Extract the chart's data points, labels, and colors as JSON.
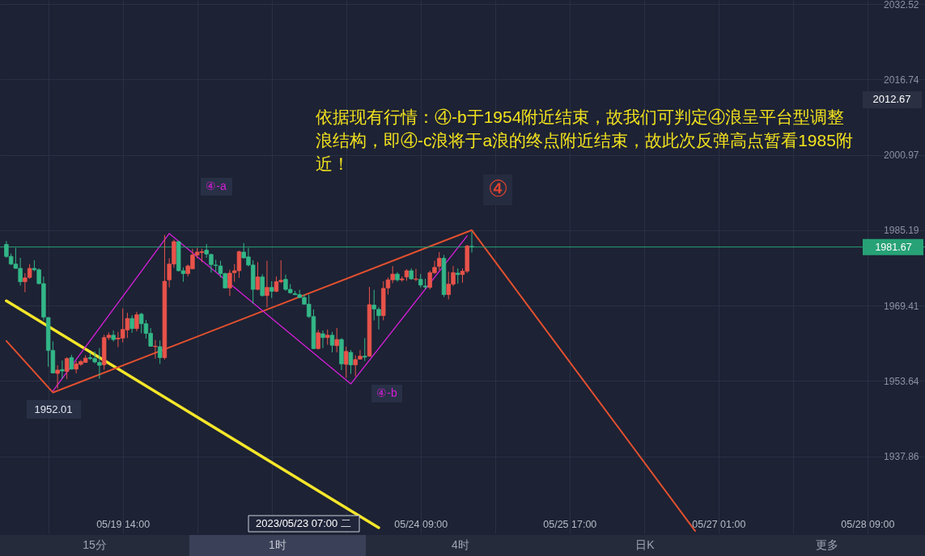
{
  "chart_data": {
    "type": "candlestick",
    "categories": [
      null,
      null,
      null,
      null,
      null,
      null,
      null,
      null,
      null,
      null,
      null,
      null,
      null,
      null,
      null,
      null,
      null,
      null,
      null,
      null,
      null,
      null,
      null,
      null,
      null,
      "05/19 14:00",
      null,
      null,
      null,
      null,
      null,
      null,
      null,
      null,
      null,
      null,
      null,
      null,
      null,
      null,
      null,
      null,
      null,
      null,
      null,
      null,
      null,
      null,
      null,
      null,
      null,
      null,
      null,
      null,
      null,
      null,
      null,
      null,
      null,
      null,
      null,
      null,
      null,
      null,
      null,
      null,
      null,
      null,
      null,
      null,
      null,
      null,
      null,
      null,
      null,
      null,
      null,
      null,
      null,
      null,
      null,
      null,
      null,
      null,
      null,
      null,
      null,
      null,
      null,
      "05/24 09:00",
      null,
      null,
      null,
      null,
      null,
      null,
      null,
      null,
      null,
      null,
      null,
      null,
      null,
      null,
      null,
      null,
      null,
      null,
      null,
      null,
      null,
      null,
      null,
      null,
      null,
      null,
      null,
      null,
      null,
      null,
      null,
      "05/25 17:00",
      null,
      null,
      null,
      null,
      null,
      null,
      null,
      null,
      null,
      null,
      null,
      null,
      null,
      null,
      null,
      null,
      null,
      null,
      null,
      null,
      null,
      null,
      null,
      null,
      null,
      null,
      null,
      null,
      null,
      null,
      null,
      "05/27 01:00",
      null,
      null,
      null,
      null,
      null,
      null,
      null,
      null,
      null,
      null,
      null,
      null,
      null,
      null,
      null,
      null,
      null,
      null,
      null,
      null,
      null,
      null,
      null,
      null,
      null,
      null,
      null,
      null,
      null,
      null,
      null,
      "05/28 09:00",
      null,
      null,
      null,
      null,
      null,
      null,
      null,
      null,
      null,
      null,
      null
    ],
    "ohlc": [
      [
        1982.2,
        1982.9,
        1979.4,
        1979.7
      ],
      [
        1979.7,
        1980.3,
        1977.9,
        1978.1
      ],
      [
        1978.1,
        1981.5,
        1977.2,
        1977.2
      ],
      [
        1977.2,
        1979.4,
        1973.6,
        1974.4
      ],
      [
        1974.4,
        1976.2,
        1972.2,
        1975.2
      ],
      [
        1975.3,
        1978.1,
        1975.0,
        1977.2
      ],
      [
        1977.2,
        1978.9,
        1976.6,
        1976.9
      ],
      [
        1976.9,
        1977.2,
        1973.9,
        1974.0
      ],
      [
        1974.0,
        1975.5,
        1966.3,
        1967.0
      ],
      [
        1966.9,
        1966.9,
        1956.6,
        1960.0
      ],
      [
        1960.0,
        1961.9,
        1955.2,
        1955.3
      ],
      [
        1955.2,
        1956.9,
        1952.01,
        1955.9
      ],
      [
        1956.0,
        1957.9,
        1954.1,
        1955.7
      ],
      [
        1955.6,
        1958.6,
        1954.0,
        1958.3
      ],
      [
        1958.5,
        1959.1,
        1956.0,
        1956.1
      ],
      [
        1956.1,
        1957.8,
        1955.2,
        1957.2
      ],
      [
        1957.1,
        1958.0,
        1956.8,
        1957.7
      ],
      [
        1957.5,
        1959.0,
        1957.4,
        1958.4
      ],
      [
        1958.5,
        1959.5,
        1958.0,
        1958.3
      ],
      [
        1958.3,
        1959.8,
        1957.3,
        1957.6
      ],
      [
        1957.5,
        1960.5,
        1954.1,
        1956.9
      ],
      [
        1957.0,
        1963.3,
        1956.0,
        1962.7
      ],
      [
        1962.7,
        1963.8,
        1962.2,
        1963.2
      ],
      [
        1963.2,
        1964.2,
        1961.9,
        1962.3
      ],
      [
        1962.4,
        1963.9,
        1960.7,
        1962.6
      ],
      [
        1962.6,
        1968.8,
        1961.7,
        1964.4
      ],
      [
        1964.3,
        1967.9,
        1962.6,
        1966.7
      ],
      [
        1966.7,
        1967.4,
        1963.7,
        1964.6
      ],
      [
        1964.6,
        1968.1,
        1964.0,
        1967.5
      ],
      [
        1967.6,
        1967.9,
        1963.6,
        1965.6
      ],
      [
        1965.6,
        1966.4,
        1962.5,
        1963.6
      ],
      [
        1963.6,
        1964.7,
        1960.8,
        1960.9
      ],
      [
        1960.8,
        1962.2,
        1958.3,
        1960.9
      ],
      [
        1960.8,
        1962.1,
        1957.2,
        1958.5
      ],
      [
        1958.5,
        1984.2,
        1958.1,
        1974.5
      ],
      [
        1974.8,
        1979.3,
        1973.2,
        1978.1
      ],
      [
        1978.1,
        1983.2,
        1977.3,
        1982.8
      ],
      [
        1982.8,
        1982.9,
        1976.6,
        1976.7
      ],
      [
        1976.7,
        1977.4,
        1974.4,
        1976.1
      ],
      [
        1976.1,
        1978.0,
        1975.5,
        1977.7
      ],
      [
        1977.1,
        1981.3,
        1977.0,
        1980.0
      ],
      [
        1980.0,
        1981.5,
        1979.3,
        1980.6
      ],
      [
        1980.5,
        1981.3,
        1978.5,
        1980.7
      ],
      [
        1981.0,
        1982.3,
        1979.4,
        1980.2
      ],
      [
        1980.1,
        1980.3,
        1976.3,
        1978.0
      ],
      [
        1977.9,
        1979.0,
        1976.5,
        1977.8
      ],
      [
        1977.7,
        1978.8,
        1975.3,
        1976.1
      ],
      [
        1976.1,
        1976.3,
        1973.0,
        1973.1
      ],
      [
        1973.1,
        1976.9,
        1971.4,
        1976.2
      ],
      [
        1976.3,
        1978.1,
        1974.4,
        1976.7
      ],
      [
        1976.7,
        1980.9,
        1975.2,
        1980.7
      ],
      [
        1980.6,
        1982.5,
        1979.3,
        1979.4
      ],
      [
        1979.6,
        1981.5,
        1977.6,
        1977.9
      ],
      [
        1977.9,
        1978.9,
        1969.8,
        1972.8
      ],
      [
        1972.8,
        1978.5,
        1972.6,
        1975.4
      ],
      [
        1975.4,
        1976.0,
        1971.3,
        1971.5
      ],
      [
        1971.5,
        1978.8,
        1969.0,
        1973.2
      ],
      [
        1973.2,
        1974.5,
        1971.0,
        1972.4
      ],
      [
        1972.4,
        1975.5,
        1972.2,
        1974.4
      ],
      [
        1974.4,
        1978.9,
        1974.1,
        1974.7
      ],
      [
        1974.9,
        1975.9,
        1972.5,
        1972.8
      ],
      [
        1972.8,
        1973.9,
        1971.9,
        1972.1
      ],
      [
        1971.9,
        1972.5,
        1971.6,
        1971.7
      ],
      [
        1971.7,
        1972.7,
        1971.0,
        1971.1
      ],
      [
        1971.1,
        1971.8,
        1969.6,
        1969.7
      ],
      [
        1969.7,
        1971.7,
        1966.8,
        1967.1
      ],
      [
        1967.1,
        1968.6,
        1960.3,
        1960.4
      ],
      [
        1960.4,
        1964.3,
        1960.2,
        1963.7
      ],
      [
        1963.5,
        1964.2,
        1960.5,
        1962.7
      ],
      [
        1962.7,
        1964.4,
        1961.2,
        1963.2
      ],
      [
        1963.2,
        1963.9,
        1959.6,
        1961.1
      ],
      [
        1961.0,
        1964.7,
        1959.6,
        1962.3
      ],
      [
        1962.3,
        1962.6,
        1955.9,
        1957.2
      ],
      [
        1957.1,
        1960.8,
        1954.3,
        1959.8
      ],
      [
        1959.6,
        1960.1,
        1955.1,
        1957.0
      ],
      [
        1957.0,
        1959.0,
        1954.6,
        1958.1
      ],
      [
        1958.2,
        1960.1,
        1958.1,
        1958.8
      ],
      [
        1958.8,
        1962.6,
        1957.8,
        1958.6
      ],
      [
        1958.8,
        1973.3,
        1958.7,
        1969.6
      ],
      [
        1969.5,
        1972.7,
        1966.3,
        1968.7
      ],
      [
        1968.6,
        1969.1,
        1964.4,
        1967.3
      ],
      [
        1967.3,
        1974.5,
        1966.3,
        1973.0
      ],
      [
        1973.1,
        1975.3,
        1971.7,
        1974.8
      ],
      [
        1974.8,
        1977.7,
        1974.1,
        1976.0
      ],
      [
        1976.0,
        1976.4,
        1974.4,
        1974.8
      ],
      [
        1974.8,
        1975.5,
        1974.4,
        1975.0
      ],
      [
        1975.4,
        1977.0,
        1974.6,
        1976.7
      ],
      [
        1976.7,
        1977.2,
        1974.8,
        1975.0
      ],
      [
        1974.9,
        1977.1,
        1974.5,
        1975.0
      ],
      [
        1974.9,
        1976.0,
        1973.2,
        1973.7
      ],
      [
        1973.5,
        1975.0,
        1972.9,
        1973.3
      ],
      [
        1973.2,
        1976.7,
        1972.8,
        1976.3
      ],
      [
        1976.3,
        1978.8,
        1976.0,
        1977.4
      ],
      [
        1977.6,
        1980.6,
        1976.8,
        1979.3
      ],
      [
        1979.3,
        1980.0,
        1971.2,
        1971.7
      ],
      [
        1971.7,
        1976.5,
        1970.7,
        1973.9
      ],
      [
        1973.9,
        1977.7,
        1973.5,
        1976.3
      ],
      [
        1976.2,
        1977.2,
        1974.0,
        1975.9
      ],
      [
        1975.9,
        1977.2,
        1974.2,
        1976.6
      ],
      [
        1976.6,
        1982.1,
        1976.2,
        1981.9
      ],
      [
        1981.8,
        1984.9,
        1980.5,
        1981.67
      ],
      null,
      null,
      null,
      null,
      null,
      null,
      null,
      null,
      null,
      null,
      null,
      null,
      null,
      null,
      null,
      null,
      null,
      null,
      null,
      null,
      null,
      null,
      null,
      null,
      null,
      null,
      null,
      null,
      null,
      null,
      null,
      null,
      null,
      null,
      null,
      null,
      null,
      null,
      null,
      null,
      null,
      null,
      null,
      null,
      null,
      null,
      null,
      null,
      null,
      null,
      null,
      null,
      null,
      null,
      null,
      null,
      null,
      null,
      null,
      null,
      null,
      null,
      null,
      null,
      null,
      null,
      null,
      null,
      null,
      null,
      null,
      null,
      null,
      null,
      null,
      null,
      null,
      null,
      null,
      null,
      null,
      null,
      null,
      null,
      null,
      null,
      null,
      null,
      null,
      null,
      null,
      null,
      null,
      null,
      null,
      null
    ],
    "colors": [
      "#33b788",
      "#33b788",
      "#33b788",
      "#33b788",
      "#e9534a",
      "#e9534a",
      "#33b788",
      "#33b788",
      "#33b788",
      "#33b788",
      "#33b788",
      "#e9534a",
      "#33b788",
      "#e9534a",
      "#33b788",
      "#e9534a",
      "#e9534a",
      "#e9534a",
      "#33b788",
      "#33b788",
      "#33b788",
      "#e9534a",
      "#e9534a",
      "#33b788",
      "#e9534a",
      "#e9534a",
      "#e9534a",
      "#33b788",
      "#e9534a",
      "#33b788",
      "#33b788",
      "#33b788",
      "#e9534a",
      "#33b788",
      "#e9534a",
      "#e9534a",
      "#e9534a",
      "#33b788",
      "#33b788",
      "#e9534a",
      "#e9534a",
      "#e9534a",
      "#e9534a",
      "#33b788",
      "#33b788",
      "#33b788",
      "#33b788",
      "#33b788",
      "#e9534a",
      "#e9534a",
      "#e9534a",
      "#33b788",
      "#33b788",
      "#33b788",
      "#e9534a",
      "#33b788",
      "#e9534a",
      "#33b788",
      "#e9534a",
      "#e9534a",
      "#33b788",
      "#33b788",
      "#33b788",
      "#33b788",
      "#33b788",
      "#33b788",
      "#33b788",
      "#e9534a",
      "#33b788",
      "#e9534a",
      "#33b788",
      "#e9534a",
      "#33b788",
      "#e9534a",
      "#33b788",
      "#e9534a",
      "#e9534a",
      "#33b788",
      "#e9534a",
      "#33b788",
      "#33b788",
      "#e9534a",
      "#e9534a",
      "#e9534a",
      "#33b788",
      "#e9534a",
      "#e9534a",
      "#33b788",
      "#e9534a",
      "#33b788",
      "#33b788",
      "#e9534a",
      "#e9534a",
      "#e9534a",
      "#33b788",
      "#e9534a",
      "#e9534a",
      "#33b788",
      "#e9534a",
      "#e9534a",
      "#33b788",
      null,
      null,
      null,
      null,
      null,
      null,
      null,
      null,
      null,
      null,
      null,
      null,
      null,
      null,
      null,
      null,
      null,
      null,
      null,
      null,
      null,
      null,
      null,
      null,
      null,
      null,
      null,
      null,
      null,
      null,
      null,
      null,
      null,
      null,
      null,
      null,
      null,
      null,
      null,
      null,
      null,
      null,
      null,
      null,
      null,
      null,
      null,
      null,
      null,
      null,
      null,
      null,
      null,
      null,
      null,
      null,
      null,
      null,
      null,
      null,
      null,
      null,
      null,
      null,
      null,
      null,
      null,
      null,
      null,
      null,
      null,
      null,
      null,
      null,
      null,
      null,
      null,
      null,
      null,
      null,
      null,
      null,
      null,
      null,
      null,
      null,
      null,
      null,
      null,
      null,
      null,
      null,
      null,
      null,
      null,
      null
    ],
    "series": [
      {
        "type": "line",
        "color": "#f4e62a",
        "values": [
          1970.4,
          null,
          null,
          null,
          null,
          null,
          null,
          null,
          null,
          null,
          null,
          null,
          null,
          null,
          null,
          null,
          null,
          null,
          null,
          null,
          null,
          null,
          null,
          null,
          null,
          null,
          null,
          null,
          null,
          null,
          null,
          null,
          null,
          null,
          null,
          null,
          null,
          null,
          null,
          null,
          null,
          null,
          null,
          null,
          null,
          null,
          null,
          null,
          null,
          null,
          null,
          null,
          null,
          null,
          null,
          null,
          null,
          null,
          null,
          null,
          null,
          null,
          null,
          null,
          null,
          null,
          null,
          null,
          null,
          null,
          null,
          null,
          null,
          null,
          null,
          null,
          null,
          null,
          null,
          null,
          1922.9,
          null,
          null,
          null,
          null,
          null,
          null,
          null,
          null,
          null,
          null,
          null,
          null,
          null,
          null,
          null,
          null,
          null,
          null,
          null,
          null,
          null,
          null,
          null,
          null,
          null,
          null,
          null,
          null,
          null,
          null,
          null,
          null,
          null,
          null,
          null,
          null,
          null,
          null,
          null,
          null,
          null,
          null,
          null,
          null,
          null,
          null,
          null,
          null,
          null,
          null,
          null,
          null,
          null,
          null,
          null,
          null,
          null,
          null,
          null,
          null,
          null,
          null,
          null,
          null,
          null,
          null,
          null,
          null,
          null,
          null,
          null,
          null,
          null,
          null,
          null,
          null,
          null,
          null,
          null,
          null,
          null,
          null,
          null,
          null,
          null,
          null,
          null,
          null,
          null,
          null,
          null,
          null,
          null,
          null,
          null,
          null,
          null,
          null,
          null,
          null,
          null,
          null,
          null,
          null,
          null,
          null,
          null,
          null,
          null,
          null,
          null,
          null,
          null,
          null,
          null,
          null
        ]
      },
      {
        "type": "line",
        "color": "#e2502f",
        "values": [
          1962.0,
          null,
          null,
          null,
          null,
          null,
          null,
          null,
          null,
          null,
          1951.2,
          null,
          null,
          null,
          null,
          null,
          null,
          null,
          null,
          null,
          null,
          null,
          null,
          null,
          null,
          null,
          null,
          null,
          null,
          null,
          null,
          null,
          null,
          null,
          null,
          null,
          null,
          null,
          null,
          null,
          null,
          null,
          null,
          null,
          null,
          null,
          null,
          null,
          null,
          null,
          null,
          null,
          null,
          null,
          null,
          null,
          null,
          null,
          null,
          null,
          null,
          null,
          null,
          null,
          null,
          null,
          null,
          null,
          null,
          null,
          null,
          null,
          null,
          null,
          null,
          null,
          null,
          null,
          null,
          null,
          null,
          null,
          null,
          null,
          null,
          null,
          null,
          null,
          null,
          null,
          null,
          null,
          null,
          null,
          null,
          null,
          null,
          null,
          null,
          null,
          1985.2,
          null,
          null,
          null,
          null,
          null,
          null,
          null,
          null,
          null,
          null,
          null,
          null,
          null,
          null,
          null,
          null,
          null,
          null,
          null,
          null,
          null,
          null,
          null,
          null,
          null,
          null,
          null,
          null,
          null,
          null,
          null,
          null,
          null,
          null,
          null,
          null,
          null,
          null,
          null,
          null,
          null,
          null,
          null,
          null,
          null,
          null,
          null,
          1922.2,
          null,
          null,
          null,
          null,
          null,
          null,
          null,
          null,
          null,
          null,
          null,
          null,
          null,
          null,
          null,
          null,
          null,
          null,
          null,
          null,
          null,
          null,
          null,
          null,
          null,
          null,
          null,
          null,
          null,
          null,
          null,
          null,
          null,
          null,
          null,
          null,
          null,
          null,
          null,
          null,
          null,
          null,
          null,
          null,
          null,
          null,
          null,
          null
        ]
      },
      {
        "type": "line",
        "color": "#d21fd6",
        "values": [
          null,
          null,
          null,
          null,
          null,
          null,
          null,
          null,
          null,
          null,
          1951.5,
          null,
          null,
          null,
          null,
          null,
          null,
          null,
          null,
          null,
          null,
          null,
          null,
          null,
          null,
          null,
          null,
          null,
          null,
          null,
          null,
          null,
          null,
          null,
          null,
          1984.5,
          null,
          null,
          null,
          null,
          null,
          null,
          null,
          null,
          null,
          null,
          null,
          null,
          null,
          null,
          null,
          null,
          null,
          null,
          null,
          null,
          null,
          null,
          null,
          null,
          null,
          null,
          null,
          null,
          null,
          null,
          null,
          null,
          null,
          null,
          null,
          null,
          null,
          null,
          1953.0,
          null,
          null,
          null,
          null,
          null,
          null,
          null,
          null,
          null,
          null,
          null,
          null,
          null,
          null,
          null,
          null,
          null,
          null,
          null,
          null,
          null,
          null,
          null,
          null,
          1984.0,
          null,
          null,
          null,
          null,
          null,
          null,
          null,
          null,
          null,
          null,
          null,
          null,
          null,
          null,
          null,
          null,
          null,
          null,
          null,
          null,
          null,
          null,
          null,
          null,
          null,
          null,
          null,
          null,
          null,
          null,
          null,
          null,
          null,
          null,
          null,
          null,
          null,
          null,
          null,
          null,
          null,
          null,
          null,
          null,
          null,
          null,
          null,
          null,
          null,
          null,
          null,
          null,
          null,
          null,
          null,
          null,
          null,
          null,
          null,
          null,
          null,
          null,
          null,
          null,
          null,
          null,
          null,
          null,
          null,
          null,
          null,
          null,
          null,
          null,
          null,
          null,
          null,
          null,
          null,
          null,
          null,
          null,
          null,
          null,
          null,
          null,
          null,
          null,
          null,
          null,
          null,
          null,
          null,
          null,
          null,
          null,
          null
        ]
      }
    ],
    "ylim": [
      1921.7,
      2033.4
    ],
    "yticks": [
      2032.52,
      2016.74,
      2000.97,
      1985.19,
      1969.41,
      1953.64,
      1937.86
    ],
    "grid": true,
    "ref_lines": [
      {
        "axis": "y",
        "value": 1981.67,
        "label": "1981.67",
        "color": "#27a276"
      }
    ],
    "annotations": [
      "依据现有行情：④-b于1954附近结束，故我们可判定④浪呈平台型调整浪结构，即④-c浪将于a浪的终点附近结束，故此次反弹高点暂看1985附近！",
      "④",
      "④-a",
      "④-b",
      "1952.01",
      "2012.67",
      "2023/05/23 07:00 二",
      "15分",
      "1时",
      "4时",
      "日K",
      "更多"
    ]
  }
}
